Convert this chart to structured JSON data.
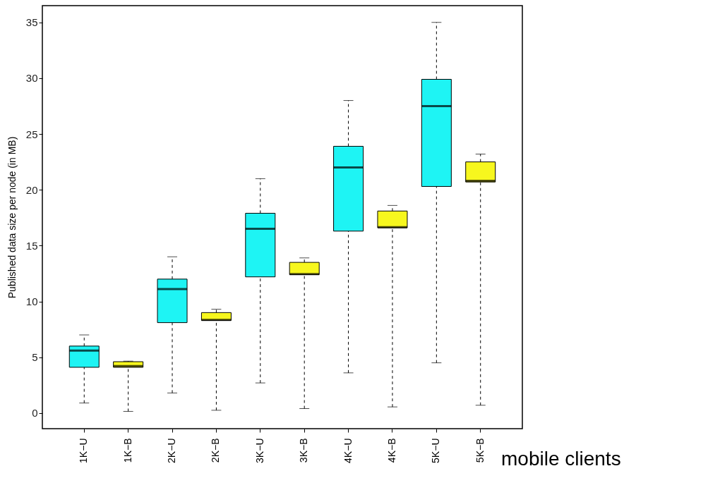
{
  "chart_data": {
    "type": "box",
    "ylabel": "Published data size per node (in MB)",
    "categories": [
      "1K−U",
      "1K−B",
      "2K−U",
      "2K−B",
      "3K−U",
      "3K−B",
      "4K−U",
      "4K−B",
      "5K−U",
      "5K−B"
    ],
    "colors": [
      "#1ef4f4",
      "#f7f71e",
      "#1ef4f4",
      "#f7f71e",
      "#1ef4f4",
      "#f7f71e",
      "#1ef4f4",
      "#f7f71e",
      "#1ef4f4",
      "#f7f71e"
    ],
    "boxes": [
      {
        "low": 0.9,
        "q1": 4.1,
        "median": 5.6,
        "q3": 6.0,
        "high": 7.0
      },
      {
        "low": 0.15,
        "q1": 4.1,
        "median": 4.2,
        "q3": 4.6,
        "high": 4.65
      },
      {
        "low": 1.8,
        "q1": 8.1,
        "median": 11.1,
        "q3": 12.0,
        "high": 14.0
      },
      {
        "low": 0.25,
        "q1": 8.3,
        "median": 8.35,
        "q3": 9.0,
        "high": 9.3
      },
      {
        "low": 2.7,
        "q1": 12.2,
        "median": 16.5,
        "q3": 17.9,
        "high": 21.0
      },
      {
        "low": 0.4,
        "q1": 12.4,
        "median": 12.45,
        "q3": 13.5,
        "high": 13.9
      },
      {
        "low": 3.6,
        "q1": 16.3,
        "median": 22.0,
        "q3": 23.9,
        "high": 28.0
      },
      {
        "low": 0.55,
        "q1": 16.6,
        "median": 16.65,
        "q3": 18.1,
        "high": 18.6
      },
      {
        "low": 4.5,
        "q1": 20.3,
        "median": 27.5,
        "q3": 29.9,
        "high": 35.0
      },
      {
        "low": 0.7,
        "q1": 20.7,
        "median": 20.8,
        "q3": 22.5,
        "high": 23.2
      }
    ],
    "ylim": [
      -1.4,
      36.5
    ],
    "yticks": [
      0,
      5,
      10,
      15,
      20,
      25,
      30,
      35
    ],
    "grid": false,
    "annotations": [
      "mobile clients"
    ]
  }
}
